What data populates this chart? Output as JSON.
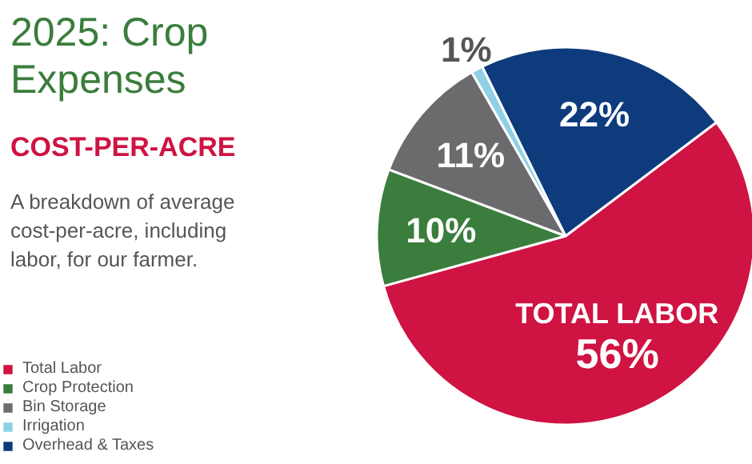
{
  "chart_data": {
    "type": "pie",
    "title": "2025: Crop Expenses",
    "subtitle": "COST-PER-ACRE",
    "categories": [
      "Total Labor",
      "Crop Protection",
      "Bin Storage",
      "Irrigation",
      "Overhead & Taxes"
    ],
    "values": [
      56,
      10,
      11,
      1,
      22
    ],
    "colors": [
      "#cf1342",
      "#3a7d3c",
      "#6b6b6d",
      "#8fd0e6",
      "#0d3b7c"
    ],
    "value_labels": [
      "56%",
      "10%",
      "11%",
      "1%",
      "22%"
    ],
    "annotations": [
      "A breakdown of average cost-per-acre, including labor, for our farmer.",
      {
        "text": "TOTAL LABOR",
        "x": "Total Labor"
      }
    ],
    "legend": "left"
  }
}
